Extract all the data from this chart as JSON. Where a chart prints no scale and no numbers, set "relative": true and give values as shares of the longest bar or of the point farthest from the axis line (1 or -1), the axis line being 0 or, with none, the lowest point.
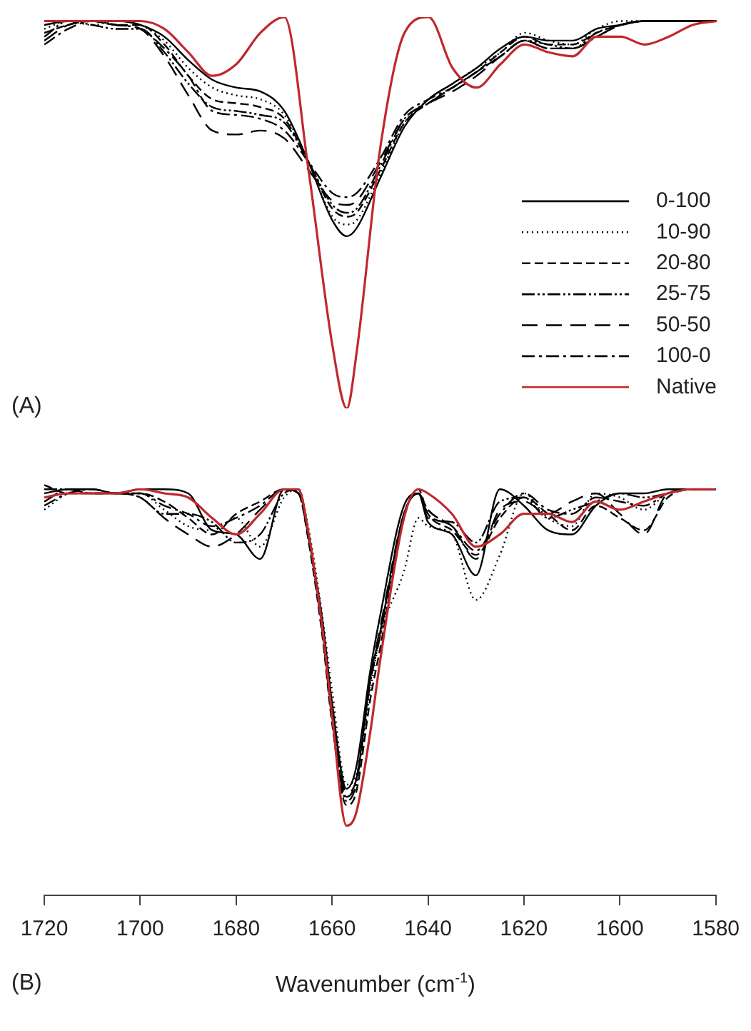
{
  "chart_data": [
    {
      "type": "line",
      "relative": true,
      "xlim": [
        1720,
        1580
      ],
      "tick_labels": false,
      "legend": "bottom right",
      "annotations": [
        "(A)"
      ],
      "x": [
        1720,
        1715,
        1710,
        1705,
        1700,
        1695,
        1690,
        1685,
        1680,
        1675,
        1670,
        1665,
        1660,
        1657,
        1655,
        1650,
        1645,
        1640,
        1635,
        1630,
        1625,
        1620,
        1615,
        1610,
        1605,
        1600,
        1595,
        1590,
        1585,
        1580
      ],
      "series": [
        {
          "name": "0-100",
          "color": "#000000",
          "line_style": "solid",
          "values": [
            0.98,
            0.99,
            0.99,
            0.99,
            0.98,
            0.95,
            0.89,
            0.84,
            0.82,
            0.81,
            0.76,
            0.63,
            0.48,
            0.44,
            0.46,
            0.59,
            0.72,
            0.79,
            0.83,
            0.87,
            0.92,
            0.95,
            0.94,
            0.94,
            0.97,
            0.98,
            0.99,
            0.99,
            0.99,
            0.99
          ]
        },
        {
          "name": "10-90",
          "color": "#000000",
          "line_style": "dotted",
          "values": [
            0.97,
            0.99,
            0.98,
            0.99,
            0.98,
            0.94,
            0.87,
            0.82,
            0.8,
            0.79,
            0.75,
            0.63,
            0.49,
            0.47,
            0.48,
            0.6,
            0.73,
            0.79,
            0.83,
            0.87,
            0.91,
            0.96,
            0.94,
            0.93,
            0.97,
            0.99,
            0.99,
            0.99,
            0.99,
            0.99
          ]
        },
        {
          "name": "20-80",
          "color": "#000000",
          "line_style": "dashed",
          "values": [
            0.96,
            0.98,
            0.99,
            0.98,
            0.98,
            0.93,
            0.85,
            0.79,
            0.78,
            0.77,
            0.74,
            0.63,
            0.51,
            0.49,
            0.5,
            0.61,
            0.73,
            0.78,
            0.82,
            0.86,
            0.91,
            0.95,
            0.93,
            0.93,
            0.96,
            0.98,
            0.99,
            0.99,
            0.99,
            0.99
          ]
        },
        {
          "name": "25-75",
          "color": "#000000",
          "line_style": "dashdotdot",
          "values": [
            0.95,
            0.99,
            0.98,
            0.97,
            0.97,
            0.91,
            0.83,
            0.77,
            0.76,
            0.75,
            0.73,
            0.63,
            0.52,
            0.5,
            0.51,
            0.62,
            0.74,
            0.78,
            0.82,
            0.86,
            0.9,
            0.94,
            0.93,
            0.92,
            0.96,
            0.98,
            0.99,
            0.99,
            0.99,
            0.99
          ]
        },
        {
          "name": "50-50",
          "color": "#000000",
          "line_style": "longdash",
          "values": [
            0.94,
            0.98,
            0.99,
            0.98,
            0.97,
            0.9,
            0.8,
            0.71,
            0.7,
            0.71,
            0.69,
            0.61,
            0.53,
            0.52,
            0.53,
            0.63,
            0.74,
            0.78,
            0.81,
            0.85,
            0.9,
            0.94,
            0.92,
            0.92,
            0.95,
            0.98,
            0.99,
            0.99,
            0.99,
            0.99
          ]
        },
        {
          "name": "100-0",
          "color": "#000000",
          "line_style": "dashdot",
          "values": [
            0.93,
            0.97,
            0.99,
            0.98,
            0.97,
            0.92,
            0.85,
            0.76,
            0.75,
            0.74,
            0.71,
            0.63,
            0.55,
            0.54,
            0.55,
            0.64,
            0.75,
            0.79,
            0.82,
            0.86,
            0.9,
            0.94,
            0.92,
            0.92,
            0.95,
            0.98,
            0.99,
            0.99,
            0.99,
            0.99
          ]
        },
        {
          "name": "Native",
          "color": "#c0282d",
          "line_style": "solid",
          "values": [
            0.99,
            0.99,
            0.99,
            0.99,
            0.99,
            0.97,
            0.91,
            0.85,
            0.88,
            0.96,
            1.0,
            0.61,
            0.16,
            0,
            0.14,
            0.67,
            0.96,
            1.0,
            0.87,
            0.82,
            0.88,
            0.93,
            0.91,
            0.9,
            0.95,
            0.95,
            0.93,
            0.95,
            0.98,
            0.99
          ]
        }
      ]
    },
    {
      "type": "line",
      "relative": true,
      "xlim": [
        1720,
        1580
      ],
      "xticks": [
        1720,
        1700,
        1680,
        1660,
        1640,
        1620,
        1600,
        1580
      ],
      "tick_labels": "x",
      "xlabel": "Wavenumber (cm$^{-1}$)",
      "annotations": [
        "(B)"
      ],
      "x": [
        1720,
        1715,
        1710,
        1705,
        1700,
        1695,
        1690,
        1685,
        1680,
        1675,
        1670,
        1667,
        1665,
        1662,
        1660,
        1657,
        1655,
        1652,
        1650,
        1645,
        1642,
        1640,
        1635,
        1630,
        1625,
        1620,
        1615,
        1610,
        1605,
        1600,
        1595,
        1590,
        1585,
        1580
      ],
      "series": [
        {
          "color": "#000000",
          "line_style": "solid",
          "values": [
            0.98,
            0.99,
            0.99,
            0.98,
            0.99,
            0.99,
            0.98,
            0.89,
            0.88,
            0.82,
            0.99,
            0.99,
            0.88,
            0.67,
            0.47,
            0.26,
            0.31,
            0.55,
            0.68,
            0.95,
            0.98,
            0.91,
            0.88,
            0.78,
            0.99,
            0.95,
            0.89,
            0.88,
            0.95,
            0.98,
            0.98,
            0.99,
            0.99,
            0.99
          ]
        },
        {
          "color": "#000000",
          "line_style": "dotted",
          "values": [
            0.94,
            0.98,
            0.99,
            0.98,
            0.98,
            0.94,
            0.9,
            0.89,
            0.92,
            0.85,
            0.97,
            0.99,
            0.9,
            0.68,
            0.5,
            0.27,
            0.29,
            0.5,
            0.63,
            0.79,
            0.92,
            0.9,
            0.88,
            0.72,
            0.83,
            0.98,
            0.92,
            0.9,
            0.98,
            0.97,
            0.94,
            0.98,
            0.99,
            0.99
          ]
        },
        {
          "color": "#000000",
          "line_style": "dashed",
          "values": [
            1.0,
            0.98,
            0.98,
            0.98,
            0.98,
            0.96,
            0.92,
            0.88,
            0.93,
            0.96,
            0.99,
            0.98,
            0.87,
            0.63,
            0.42,
            0.22,
            0.25,
            0.48,
            0.6,
            0.92,
            0.99,
            0.93,
            0.89,
            0.83,
            0.92,
            0.97,
            0.93,
            0.89,
            0.95,
            0.92,
            0.89,
            0.97,
            0.99,
            0.99
          ]
        },
        {
          "color": "#000000",
          "line_style": "dashdotdot",
          "values": [
            0.99,
            0.99,
            0.98,
            0.98,
            0.97,
            0.93,
            0.93,
            0.91,
            0.86,
            0.88,
            0.98,
            0.99,
            0.88,
            0.65,
            0.45,
            0.23,
            0.27,
            0.52,
            0.63,
            0.93,
            0.98,
            0.92,
            0.91,
            0.86,
            0.96,
            0.97,
            0.92,
            0.94,
            0.96,
            0.98,
            0.97,
            0.98,
            0.99,
            0.99
          ]
        },
        {
          "color": "#000000",
          "line_style": "longdash",
          "values": [
            0.96,
            0.99,
            0.98,
            0.98,
            0.97,
            0.92,
            0.88,
            0.85,
            0.88,
            0.94,
            0.99,
            0.98,
            0.88,
            0.66,
            0.46,
            0.25,
            0.28,
            0.53,
            0.65,
            0.93,
            0.98,
            0.93,
            0.9,
            0.82,
            0.94,
            0.96,
            0.93,
            0.96,
            0.98,
            0.93,
            0.88,
            0.98,
            0.99,
            0.99
          ]
        },
        {
          "color": "#000000",
          "line_style": "dashdot",
          "values": [
            0.95,
            0.98,
            0.99,
            0.98,
            0.98,
            0.95,
            0.93,
            0.9,
            0.92,
            0.95,
            0.99,
            0.98,
            0.88,
            0.64,
            0.43,
            0.24,
            0.28,
            0.53,
            0.64,
            0.93,
            0.98,
            0.94,
            0.9,
            0.84,
            0.93,
            0.98,
            0.94,
            0.93,
            0.97,
            0.96,
            0.95,
            0.98,
            0.99,
            0.99
          ]
        },
        {
          "color": "#c0282d",
          "line_style": "solid",
          "values": [
            0.97,
            0.98,
            0.98,
            0.98,
            0.99,
            0.98,
            0.97,
            0.92,
            0.88,
            0.93,
            0.99,
            0.99,
            0.89,
            0.65,
            0.44,
            0.17,
            0.2,
            0.4,
            0.57,
            0.92,
            0.99,
            0.98,
            0.93,
            0.85,
            0.88,
            0.93,
            0.93,
            0.91,
            0.96,
            0.94,
            0.96,
            0.98,
            0.99,
            0.99
          ]
        }
      ]
    }
  ]
}
